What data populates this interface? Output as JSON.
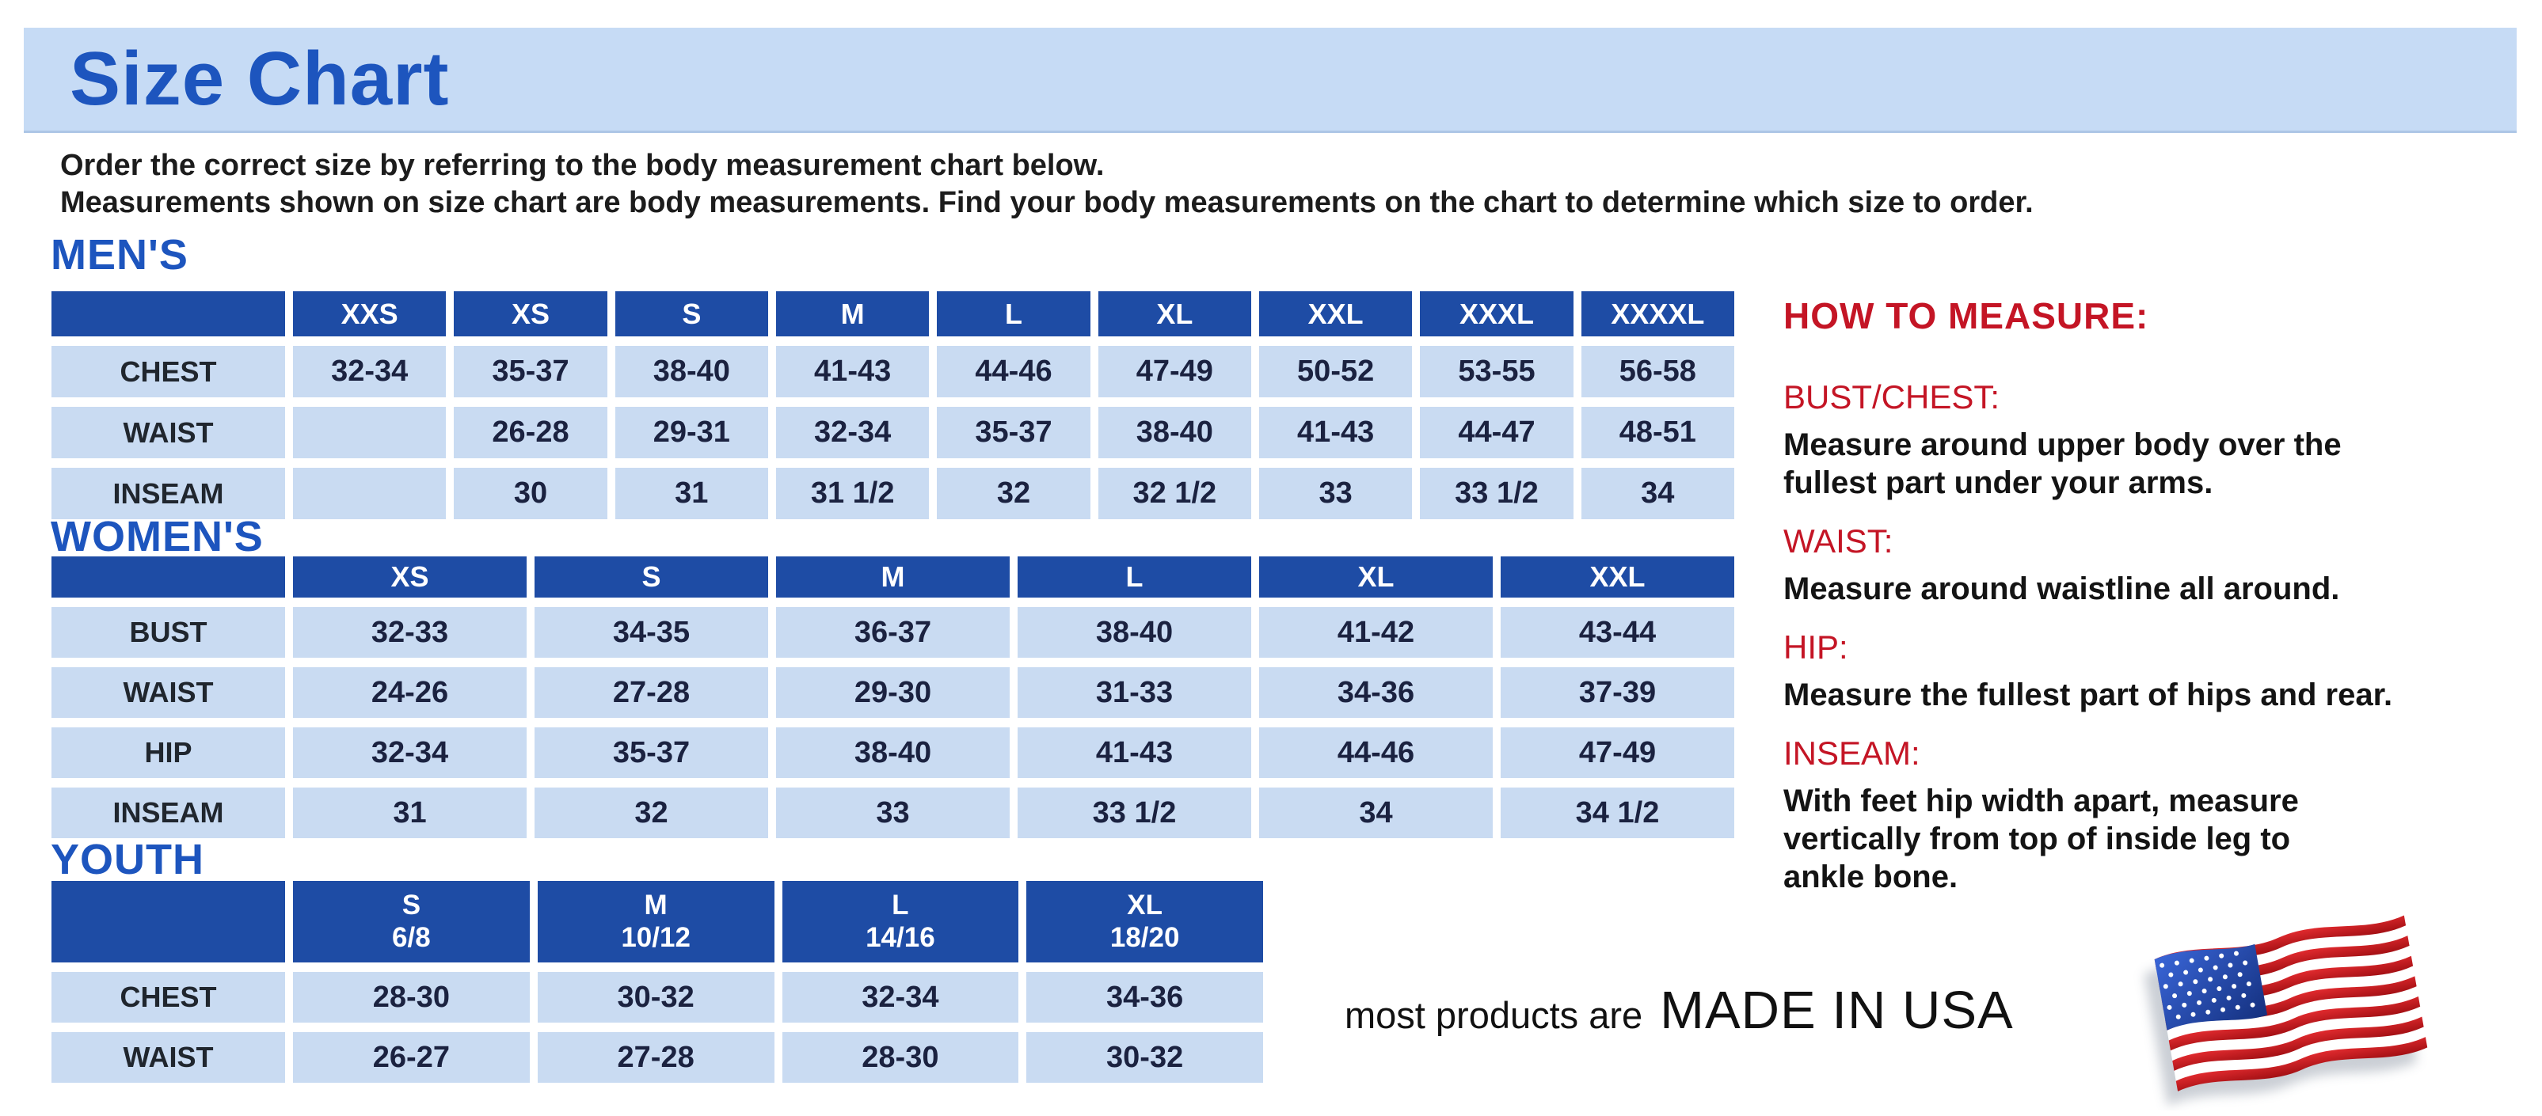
{
  "title": "Size Chart",
  "intro": {
    "line1": "Order the correct size by referring to the body measurement chart below.",
    "line2": "Measurements shown on size chart are body measurements.  Find your body measurements on the chart to determine which size to order."
  },
  "tables": {
    "mens": {
      "heading": "MEN'S",
      "columns": [
        "XXS",
        "XS",
        "S",
        "M",
        "L",
        "XL",
        "XXL",
        "XXXL",
        "XXXXL"
      ],
      "rows": [
        {
          "label": "CHEST",
          "values": [
            "32-34",
            "35-37",
            "38-40",
            "41-43",
            "44-46",
            "47-49",
            "50-52",
            "53-55",
            "56-58"
          ]
        },
        {
          "label": "WAIST",
          "values": [
            "",
            "26-28",
            "29-31",
            "32-34",
            "35-37",
            "38-40",
            "41-43",
            "44-47",
            "48-51"
          ]
        },
        {
          "label": "INSEAM",
          "values": [
            "",
            "30",
            "31",
            "31 1/2",
            "32",
            "32 1/2",
            "33",
            "33 1/2",
            "34"
          ]
        }
      ]
    },
    "womens": {
      "heading": "WOMEN'S",
      "columns": [
        "XS",
        "S",
        "M",
        "L",
        "XL",
        "XXL"
      ],
      "rows": [
        {
          "label": "BUST",
          "values": [
            "32-33",
            "34-35",
            "36-37",
            "38-40",
            "41-42",
            "43-44"
          ]
        },
        {
          "label": "WAIST",
          "values": [
            "24-26",
            "27-28",
            "29-30",
            "31-33",
            "34-36",
            "37-39"
          ]
        },
        {
          "label": "HIP",
          "values": [
            "32-34",
            "35-37",
            "38-40",
            "41-43",
            "44-46",
            "47-49"
          ]
        },
        {
          "label": "INSEAM",
          "values": [
            "31",
            "32",
            "33",
            "33 1/2",
            "34",
            "34 1/2"
          ]
        }
      ]
    },
    "youth": {
      "heading": "YOUTH",
      "columns": [
        {
          "label": "S",
          "sub": "6/8"
        },
        {
          "label": "M",
          "sub": "10/12"
        },
        {
          "label": "L",
          "sub": "14/16"
        },
        {
          "label": "XL",
          "sub": "18/20"
        }
      ],
      "rows": [
        {
          "label": "CHEST",
          "values": [
            "28-30",
            "30-32",
            "32-34",
            "34-36"
          ]
        },
        {
          "label": "WAIST",
          "values": [
            "26-27",
            "27-28",
            "28-30",
            "30-32"
          ]
        }
      ]
    }
  },
  "how_to_measure": {
    "heading": "HOW TO MEASURE:",
    "items": [
      {
        "label": "BUST/CHEST:",
        "text": "Measure around upper body over the\nfullest part under your arms."
      },
      {
        "label": "WAIST:",
        "text": "Measure around waistline all around."
      },
      {
        "label": "HIP:",
        "text": "Measure the fullest part of hips and rear."
      },
      {
        "label": "INSEAM:",
        "text": "With feet hip width apart, measure\nvertically from top of inside leg to\nankle bone."
      }
    ]
  },
  "footer": {
    "prefix": "most products are",
    "made_in": "MADE IN USA",
    "flag_icon": "us-flag-icon"
  },
  "colors": {
    "banner_bg": "#c6dbf5",
    "title_blue": "#1d55be",
    "header_blue": "#1e4ca5",
    "cell_blue": "#c9dbf2",
    "red": "#c41525"
  }
}
